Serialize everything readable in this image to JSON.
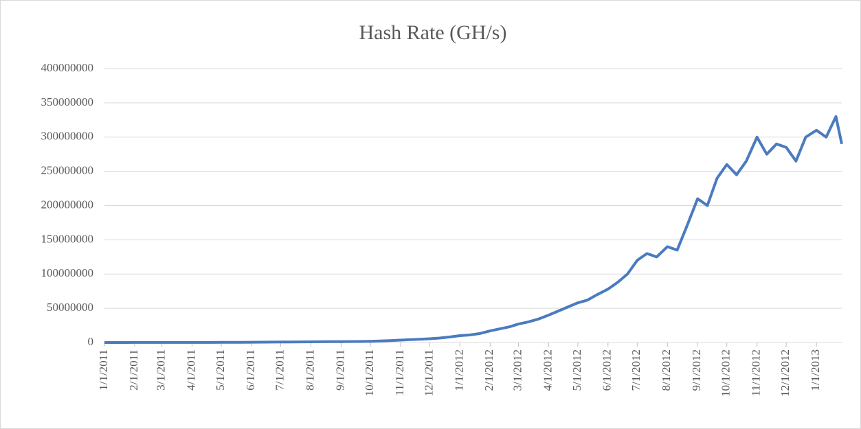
{
  "chart_data": {
    "type": "line",
    "title": "Hash Rate (GH/s)",
    "x": [
      "1/1/2011",
      "1/11/2011",
      "1/21/2011",
      "2/1/2011",
      "2/11/2011",
      "2/21/2011",
      "3/1/2011",
      "3/11/2011",
      "3/21/2011",
      "4/1/2011",
      "4/11/2011",
      "4/21/2011",
      "5/1/2011",
      "5/11/2011",
      "5/21/2011",
      "6/1/2011",
      "6/11/2011",
      "6/21/2011",
      "7/1/2011",
      "7/11/2011",
      "7/21/2011",
      "8/1/2011",
      "8/11/2011",
      "8/21/2011",
      "9/1/2011",
      "9/11/2011",
      "9/21/2011",
      "10/1/2011",
      "10/11/2011",
      "10/21/2011",
      "11/1/2011",
      "11/11/2011",
      "11/21/2011",
      "12/1/2011",
      "12/11/2011",
      "12/21/2011",
      "1/1/2012",
      "1/11/2012",
      "1/21/2012",
      "2/1/2012",
      "2/11/2012",
      "2/21/2012",
      "3/1/2012",
      "3/11/2012",
      "3/21/2012",
      "4/1/2012",
      "4/11/2012",
      "4/21/2012",
      "5/1/2012",
      "5/11/2012",
      "5/21/2012",
      "6/1/2012",
      "6/11/2012",
      "6/21/2012",
      "7/1/2012",
      "7/11/2012",
      "7/21/2012",
      "8/1/2012",
      "8/11/2012",
      "8/21/2012",
      "9/1/2012",
      "9/11/2012",
      "9/21/2012",
      "10/1/2012",
      "10/11/2012",
      "10/21/2012",
      "11/1/2012",
      "11/11/2012",
      "11/21/2012",
      "12/1/2012",
      "12/11/2012",
      "12/21/2012",
      "1/1/2013",
      "1/11/2013",
      "1/21/2013",
      "1/27/2013"
    ],
    "series": [
      {
        "name": "Hash Rate (GH/s)",
        "color": "#4a7bbf",
        "values": [
          50000,
          50000,
          60000,
          70000,
          80000,
          90000,
          100000,
          100000,
          120000,
          120000,
          130000,
          150000,
          200000,
          250000,
          300000,
          400000,
          500000,
          600000,
          700000,
          800000,
          900000,
          1000000,
          1100000,
          1200000,
          1300000,
          1400000,
          1500000,
          1800000,
          2200000,
          2800000,
          3500000,
          4200000,
          4800000,
          5500000,
          6500000,
          8000000,
          10000000,
          11000000,
          13000000,
          17000000,
          20000000,
          23000000,
          27000000,
          30000000,
          34000000,
          40000000,
          46000000,
          52000000,
          58000000,
          62000000,
          70000000,
          78000000,
          88000000,
          100000000,
          120000000,
          130000000,
          125000000,
          140000000,
          135000000,
          170000000,
          210000000,
          200000000,
          240000000,
          260000000,
          245000000,
          265000000,
          300000000,
          275000000,
          290000000,
          285000000,
          265000000,
          300000000,
          310000000,
          300000000,
          330000000,
          290000000
        ]
      }
    ],
    "xlim": [
      "1/1/2011",
      "1/27/2013"
    ],
    "xticks": [
      "1/1/2011",
      "2/1/2011",
      "3/1/2011",
      "4/1/2011",
      "5/1/2011",
      "6/1/2011",
      "7/1/2011",
      "8/1/2011",
      "9/1/2011",
      "10/1/2011",
      "11/1/2011",
      "12/1/2011",
      "1/1/2012",
      "2/1/2012",
      "3/1/2012",
      "4/1/2012",
      "5/1/2012",
      "6/1/2012",
      "7/1/2012",
      "8/1/2012",
      "9/1/2012",
      "10/1/2012",
      "11/1/2012",
      "12/1/2012",
      "1/1/2013"
    ],
    "ylim": [
      0,
      400000000
    ],
    "yticks": [
      0,
      50000000,
      100000000,
      150000000,
      200000000,
      250000000,
      300000000,
      350000000,
      400000000
    ],
    "grid": true
  }
}
